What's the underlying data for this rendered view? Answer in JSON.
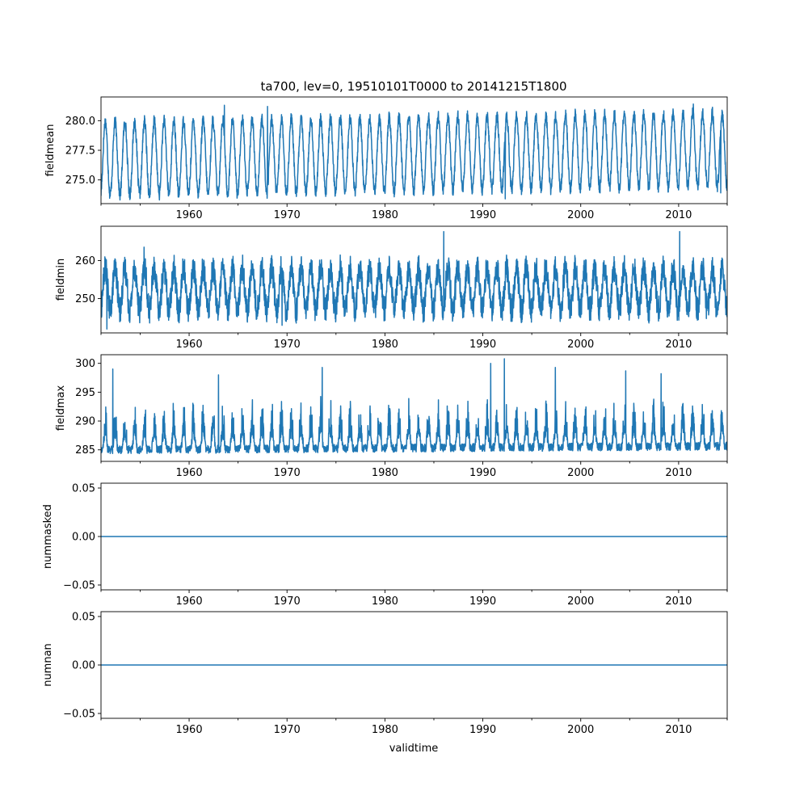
{
  "figure": {
    "title": "ta700, lev=0, 19510101T0000 to 20141215T1800",
    "xlabel": "validtime"
  },
  "colors": {
    "series": "#1f77b4",
    "axis": "#000000",
    "background": "#ffffff"
  },
  "chart_data": [
    {
      "type": "line",
      "series_name": "fieldmean",
      "ylabel": "fieldmean",
      "xlim": [
        1951.0,
        2014.96
      ],
      "xticks": [
        1960,
        1970,
        1980,
        1990,
        2000,
        2010
      ],
      "xtick_labels": [
        "1960",
        "1970",
        "1980",
        "1990",
        "2000",
        "2010"
      ],
      "ylim": [
        273.0,
        282.0
      ],
      "yticks": [
        275.0,
        277.5,
        280.0
      ],
      "ytick_labels": [
        "275.0",
        "277.5",
        "280.0"
      ],
      "pattern": {
        "kind": "seasonal",
        "base": 276.8,
        "amplitude": 3.1,
        "trend_per_year": 0.012,
        "noise": 0.5,
        "spikes": [
          [
            1963.6,
            281.3
          ],
          [
            1968.0,
            281.2
          ],
          [
            1992.3,
            273.4
          ],
          [
            2011.5,
            281.4
          ],
          [
            2014.3,
            273.9
          ]
        ]
      }
    },
    {
      "type": "line",
      "series_name": "fieldmin",
      "ylabel": "fieldmin",
      "xlim": [
        1951.0,
        2014.96
      ],
      "xticks": [
        1960,
        1970,
        1980,
        1990,
        2000,
        2010
      ],
      "xtick_labels": [
        "1960",
        "1970",
        "1980",
        "1990",
        "2000",
        "2010"
      ],
      "ylim": [
        241.0,
        269.0
      ],
      "yticks": [
        250,
        260
      ],
      "ytick_labels": [
        "250",
        "260"
      ],
      "pattern": {
        "kind": "noisy-band",
        "base": 252.5,
        "amplitude": 5.5,
        "trend_per_year": 0.0,
        "noise": 3.5,
        "spikes": [
          [
            1951.6,
            242.0
          ],
          [
            1955.4,
            263.5
          ],
          [
            1969.5,
            243.0
          ],
          [
            1986.0,
            267.6
          ],
          [
            2010.1,
            267.6
          ]
        ]
      }
    },
    {
      "type": "line",
      "series_name": "fieldmax",
      "ylabel": "fieldmax",
      "xlim": [
        1951.0,
        2014.96
      ],
      "xticks": [
        1960,
        1970,
        1980,
        1990,
        2000,
        2010
      ],
      "xtick_labels": [
        "1960",
        "1970",
        "1980",
        "1990",
        "2000",
        "2010"
      ],
      "ylim": [
        283.0,
        301.5
      ],
      "yticks": [
        285,
        290,
        295,
        300
      ],
      "ytick_labels": [
        "285",
        "290",
        "295",
        "300"
      ],
      "pattern": {
        "kind": "skewed-spikes",
        "base": 285.0,
        "amplitude": 2.5,
        "trend_per_year": 0.01,
        "noise": 1.4,
        "spikes": [
          [
            1952.2,
            299.0
          ],
          [
            1963.0,
            298.0
          ],
          [
            1973.6,
            299.3
          ],
          [
            1990.8,
            300.0
          ],
          [
            1992.2,
            300.8
          ],
          [
            1997.4,
            299.3
          ],
          [
            2004.6,
            298.7
          ],
          [
            2008.2,
            298.2
          ]
        ]
      }
    },
    {
      "type": "line",
      "series_name": "nummasked",
      "ylabel": "nummasked",
      "xlim": [
        1951.0,
        2014.96
      ],
      "xticks": [
        1960,
        1970,
        1980,
        1990,
        2000,
        2010
      ],
      "xtick_labels": [
        "1960",
        "1970",
        "1980",
        "1990",
        "2000",
        "2010"
      ],
      "ylim": [
        -0.055,
        0.055
      ],
      "yticks": [
        -0.05,
        0.0,
        0.05
      ],
      "ytick_labels": [
        "−0.05",
        "0.00",
        "0.05"
      ],
      "pattern": {
        "kind": "constant",
        "value": 0.0
      }
    },
    {
      "type": "line",
      "series_name": "numnan",
      "ylabel": "numnan",
      "xlabel": "validtime",
      "xlim": [
        1951.0,
        2014.96
      ],
      "xticks": [
        1960,
        1970,
        1980,
        1990,
        2000,
        2010
      ],
      "xtick_labels": [
        "1960",
        "1970",
        "1980",
        "1990",
        "2000",
        "2010"
      ],
      "ylim": [
        -0.055,
        0.055
      ],
      "yticks": [
        -0.05,
        0.0,
        0.05
      ],
      "ytick_labels": [
        "−0.05",
        "0.00",
        "0.05"
      ],
      "pattern": {
        "kind": "constant",
        "value": 0.0
      }
    }
  ]
}
